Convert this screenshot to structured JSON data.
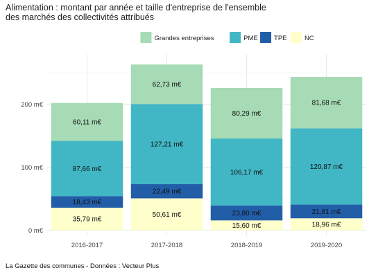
{
  "title_line1": "Alimentation : montant par année et taille d'entreprise de l'ensemble",
  "title_line2": "des marchés des collectivités attribués",
  "source": "La Gazette des communes - Données : Vecteur Plus",
  "colors": {
    "Grandes entreprises": "#a6dbb5",
    "PME": "#41b6c4",
    "TPE": "#225ea8",
    "NC": "#ffffcc"
  },
  "chart_data": {
    "type": "bar",
    "stacked": true,
    "categories": [
      "2016-2017",
      "2017-2018",
      "2018-2019",
      "2019-2020"
    ],
    "series": [
      {
        "name": "NC",
        "values": [
          35.79,
          50.61,
          15.6,
          18.96
        ],
        "labels": [
          "35,79 m€",
          "50,61 m€",
          "15,60 m€",
          "18,96 m€"
        ]
      },
      {
        "name": "TPE",
        "values": [
          18.43,
          22.49,
          23.8,
          21.81
        ],
        "labels": [
          "18,43 m€",
          "22,49 m€",
          "23,80 m€",
          "21,81 m€"
        ]
      },
      {
        "name": "PME",
        "values": [
          87.66,
          127.21,
          106.17,
          120.87
        ],
        "labels": [
          "87,66 m€",
          "127,21 m€",
          "106,17 m€",
          "120,87 m€"
        ]
      },
      {
        "name": "Grandes entreprises",
        "values": [
          60.11,
          62.73,
          80.29,
          81.68
        ],
        "labels": [
          "60,11 m€",
          "62,73 m€",
          "80,29 m€",
          "81,68 m€"
        ]
      }
    ],
    "legend": [
      "Grandes entreprises",
      "PME",
      "TPE",
      "NC"
    ],
    "legend_position": "top",
    "yticks": [
      0,
      100,
      200
    ],
    "ytick_labels": [
      "0 m€",
      "100 m€",
      "200 m€"
    ],
    "ylim": [
      0,
      275
    ],
    "grid": true
  }
}
